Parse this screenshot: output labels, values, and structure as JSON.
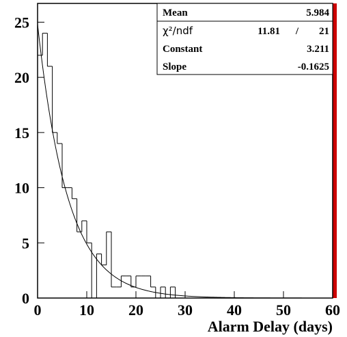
{
  "chart_data": {
    "type": "histogram",
    "x_label": "Alarm Delay (days)",
    "bins": [
      0,
      1,
      2,
      3,
      4,
      5,
      6,
      7,
      8,
      9,
      10,
      11,
      12,
      13,
      14,
      15,
      16,
      17,
      18,
      19,
      20,
      21,
      22,
      23,
      24,
      25,
      26,
      27,
      28,
      29,
      30,
      31,
      32,
      33,
      34,
      35,
      36,
      37,
      38,
      39,
      40,
      41,
      42,
      43,
      44,
      45,
      46,
      47,
      48,
      49,
      50,
      51,
      52,
      53,
      54,
      55,
      56,
      57,
      58,
      59,
      60
    ],
    "values": [
      22,
      24,
      21,
      15,
      14,
      10,
      10,
      9,
      6,
      7,
      5,
      0,
      4,
      3,
      6,
      1,
      1,
      2,
      2,
      1,
      2,
      2,
      2,
      1,
      0,
      1,
      0,
      1,
      0,
      0,
      0,
      0,
      0,
      0,
      0,
      0,
      0,
      0,
      0,
      0,
      0,
      0,
      0,
      0,
      0,
      0,
      0,
      0,
      0,
      0,
      0,
      0,
      0,
      0,
      0,
      0,
      0,
      0,
      0,
      0
    ],
    "xlim": [
      0,
      60
    ],
    "ylim": [
      0,
      26.7
    ],
    "xticks": [
      0,
      10,
      20,
      30,
      40,
      50,
      60
    ],
    "yticks": [
      0,
      5,
      10,
      15,
      20,
      25
    ],
    "stats": {
      "mean_label": "Mean",
      "mean": 5.984,
      "chi2_label": "χ²/ndf",
      "chi2": 11.81,
      "ndf": 21,
      "constant_label": "Constant",
      "constant": 3.211,
      "slope_label": "Slope",
      "slope": -0.1625
    }
  }
}
